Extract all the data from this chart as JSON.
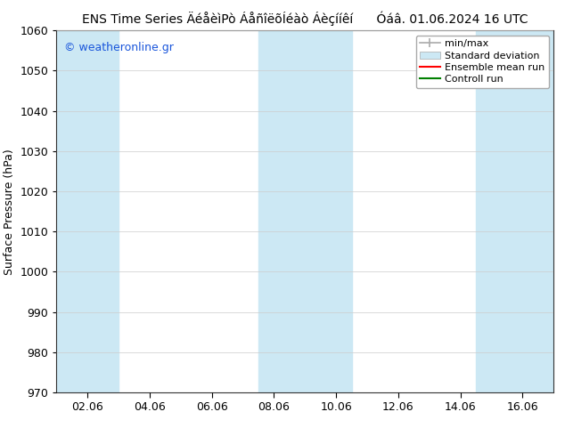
{
  "title": "ENS Time Series ÄéåèìPò ÁåñîëõÍéàò Áèçííêí      Óáâ. 01.06.2024 16 UTC",
  "ylabel": "Surface Pressure (hPa)",
  "ylim": [
    970,
    1060
  ],
  "yticks": [
    970,
    980,
    990,
    1000,
    1010,
    1020,
    1030,
    1040,
    1050,
    1060
  ],
  "xtick_labels": [
    "02.06",
    "04.06",
    "06.06",
    "08.06",
    "10.06",
    "12.06",
    "14.06",
    "16.06"
  ],
  "xtick_positions": [
    2,
    4,
    6,
    8,
    10,
    12,
    14,
    16
  ],
  "xmin": 1,
  "xmax": 17,
  "shaded_bands": [
    {
      "x_start": 1.0,
      "x_end": 3.0,
      "color": "#cce8f4"
    },
    {
      "x_start": 7.5,
      "x_end": 10.5,
      "color": "#cce8f4"
    },
    {
      "x_start": 14.5,
      "x_end": 17.0,
      "color": "#cce8f4"
    }
  ],
  "watermark_text": "© weatheronline.gr",
  "watermark_color": "#1a56db",
  "legend_entries": [
    "min/max",
    "Standard deviation",
    "Ensemble mean run",
    "Controll run"
  ],
  "legend_minmax_color": "#aaaaaa",
  "legend_std_color": "#cce8f4",
  "legend_ens_color": "#ff0000",
  "legend_ctrl_color": "#008000",
  "grid_color": "#cccccc",
  "spine_color": "#333333",
  "tick_label_fontsize": 9,
  "title_fontsize": 10,
  "ylabel_fontsize": 9,
  "watermark_fontsize": 9,
  "legend_fontsize": 8,
  "background_color": "#ffffff"
}
